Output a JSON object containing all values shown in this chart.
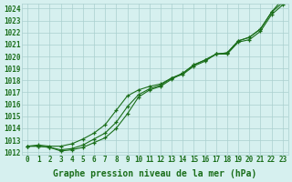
{
  "xlabel": "Graphe pression niveau de la mer (hPa)",
  "x": [
    0,
    1,
    2,
    3,
    4,
    5,
    6,
    7,
    8,
    9,
    10,
    11,
    12,
    13,
    14,
    15,
    16,
    17,
    18,
    19,
    20,
    21,
    22,
    23
  ],
  "line1": [
    1012.5,
    1012.6,
    1012.5,
    1012.5,
    1012.7,
    1013.1,
    1013.6,
    1014.3,
    1015.5,
    1016.7,
    1017.2,
    1017.5,
    1017.7,
    1018.2,
    1018.5,
    1019.2,
    1019.6,
    1020.2,
    1020.2,
    1021.2,
    1021.4,
    1022.1,
    1023.5,
    1024.3
  ],
  "line2": [
    1012.5,
    1012.5,
    1012.4,
    1012.2,
    1012.3,
    1012.6,
    1013.1,
    1013.6,
    1014.5,
    1015.8,
    1016.8,
    1017.3,
    1017.6,
    1018.2,
    1018.6,
    1019.3,
    1019.7,
    1020.2,
    1020.3,
    1021.3,
    1021.6,
    1022.3,
    1023.7,
    1024.5
  ],
  "line3": [
    1012.5,
    1012.5,
    1012.4,
    1012.1,
    1012.2,
    1012.4,
    1012.8,
    1013.2,
    1014.0,
    1015.2,
    1016.6,
    1017.2,
    1017.5,
    1018.1,
    1018.6,
    1019.3,
    1019.7,
    1020.2,
    1020.3,
    1021.3,
    1021.6,
    1022.3,
    1023.7,
    1024.8
  ],
  "line_color": "#1a6e1a",
  "bg_color": "#d6f0ef",
  "grid_color": "#aacfcf",
  "ylim": [
    1012,
    1024
  ],
  "yticks": [
    1012,
    1013,
    1014,
    1015,
    1016,
    1017,
    1018,
    1019,
    1020,
    1021,
    1022,
    1023,
    1024
  ],
  "xticks": [
    0,
    1,
    2,
    3,
    4,
    5,
    6,
    7,
    8,
    9,
    10,
    11,
    12,
    13,
    14,
    15,
    16,
    17,
    18,
    19,
    20,
    21,
    22,
    23
  ],
  "marker": "+",
  "markersize": 3.5,
  "linewidth": 0.8,
  "label_fontsize": 7,
  "tick_fontsize": 5.5
}
